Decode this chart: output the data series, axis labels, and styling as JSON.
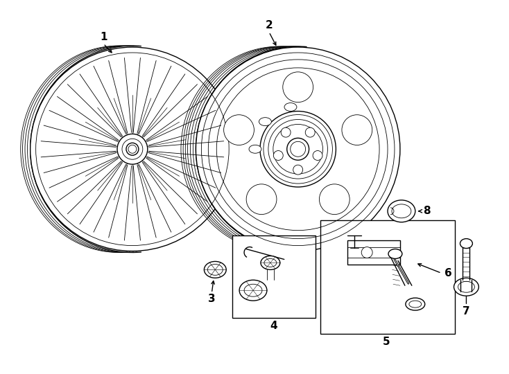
{
  "bg_color": "#ffffff",
  "line_color": "#000000",
  "lw": 1.0,
  "tlw": 0.6,
  "fig_width": 7.34,
  "fig_height": 5.4,
  "dpi": 100,
  "font_size": 11
}
